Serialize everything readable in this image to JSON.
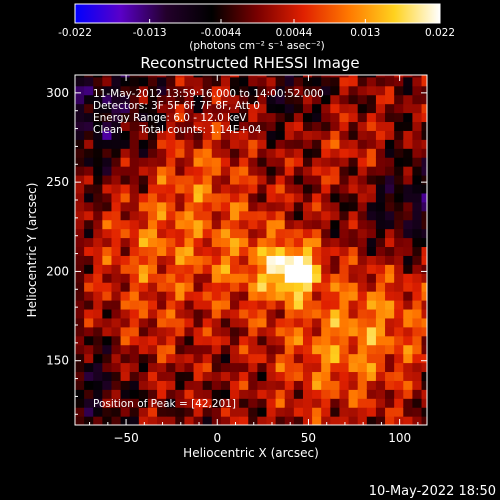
{
  "chart_data": {
    "type": "heatmap",
    "title": "Reconstructed RHESSI Image",
    "xlabel": "Heliocentric X (arcsec)",
    "ylabel": "Heliocentric Y (arcsec)",
    "xlim": [
      -78,
      115
    ],
    "ylim": [
      114,
      310
    ],
    "x_ticks": [
      -50,
      0,
      50,
      100
    ],
    "y_ticks": [
      150,
      200,
      250,
      300
    ],
    "colorbar": {
      "min": -0.022,
      "max": 0.022,
      "ticks": [
        "-0.022",
        "-0.013",
        "-0.0044",
        "0.0044",
        "0.013",
        "0.022"
      ],
      "tick_values": [
        -0.022,
        -0.013,
        -0.0044,
        0.0044,
        0.013,
        0.022
      ],
      "units": "(photons cm⁻² s⁻¹ asec⁻²)",
      "colormap": [
        "#0000ff",
        "#5a00c8",
        "#23002b",
        "#000000",
        "#7a0000",
        "#e02000",
        "#ff7800",
        "#ffd21e",
        "#ffffff"
      ]
    },
    "annotations": [
      "11-May-2012 13:59:16.000 to 14:00:52.000",
      "Detectors: 3F 5F 6F 7F 8F, Att 0",
      "Energy Range: 6.0 - 12.0 keV",
      "Clean     Total counts: 1.14E+04"
    ],
    "peak_label": "Position of Peak = [42,201]",
    "peak": {
      "x": 42,
      "y": 201,
      "value": 0.022
    },
    "sources": [
      {
        "x": 42,
        "y": 201,
        "sigma": 9,
        "amp": 0.022
      },
      {
        "x": 20,
        "y": 205,
        "sigma": 22,
        "amp": 0.009
      },
      {
        "x": -35,
        "y": 215,
        "sigma": 22,
        "amp": 0.008
      },
      {
        "x": -10,
        "y": 255,
        "sigma": 20,
        "amp": 0.007
      },
      {
        "x": 90,
        "y": 175,
        "sigma": 25,
        "amp": 0.008
      },
      {
        "x": 60,
        "y": 150,
        "sigma": 25,
        "amp": 0.007
      },
      {
        "x": -40,
        "y": 165,
        "sigma": 20,
        "amp": 0.005
      },
      {
        "x": 75,
        "y": 265,
        "sigma": 18,
        "amp": 0.005
      }
    ],
    "negative_regions": [
      {
        "x": -70,
        "y": 290,
        "sigma": 25,
        "amp": -0.009
      },
      {
        "x": 105,
        "y": 240,
        "sigma": 22,
        "amp": -0.008
      },
      {
        "x": -70,
        "y": 140,
        "sigma": 20,
        "amp": -0.007
      },
      {
        "x": 40,
        "y": 300,
        "sigma": 15,
        "amp": -0.005
      }
    ]
  },
  "footer": {
    "timestamp": "10-May-2022 18:50"
  }
}
